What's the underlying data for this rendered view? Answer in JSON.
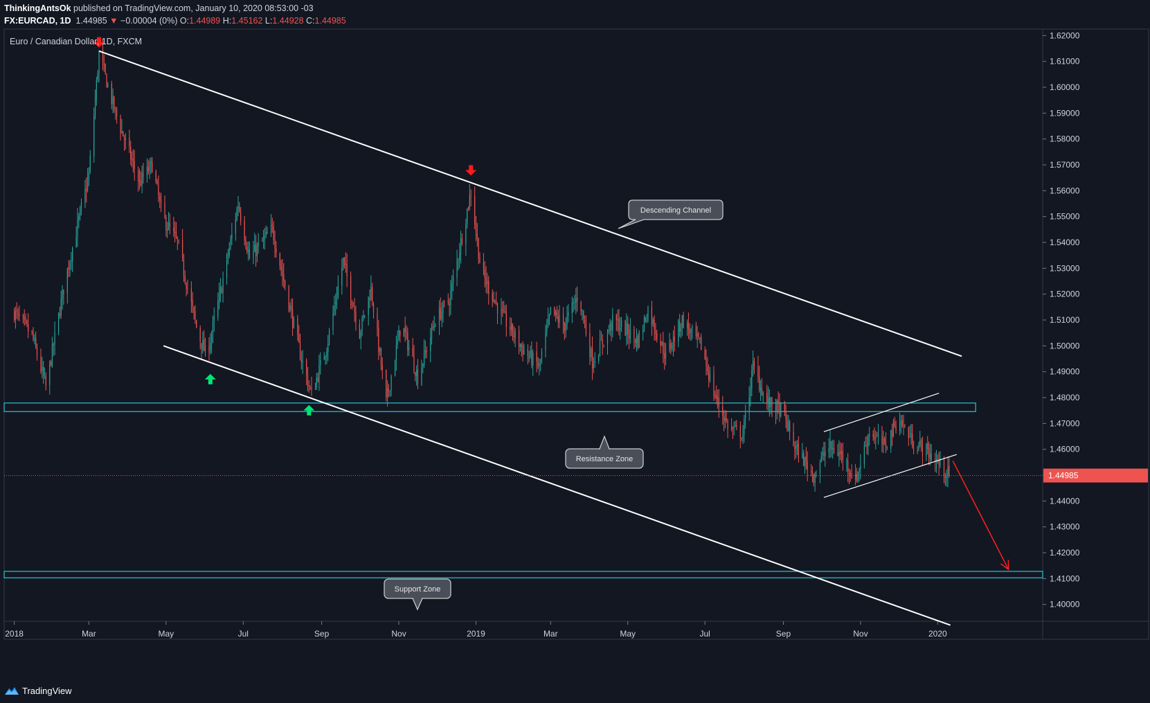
{
  "header": {
    "author": "ThinkingAntsOk",
    "published_text": "published on TradingView.com, January 10, 2020 08:53:00 -03",
    "symbol": "FX:EURCAD, 1D",
    "last": "1.44985",
    "change_arrow": "▼",
    "change": "−0.00004 (0%)",
    "open_label": "O:",
    "open": "1.44989",
    "high_label": "H:",
    "high": "1.45162",
    "low_label": "L:",
    "low": "1.44928",
    "close_label": "C:",
    "close": "1.44985"
  },
  "chart": {
    "legend_title": "Euro / Canadian Dollar, 1D, FXCM",
    "price_tag": "1.44985",
    "annotations": {
      "descending_channel": "Descending Channel",
      "resistance_zone": "Resistance Zone",
      "support_zone": "Support Zone"
    },
    "colors": {
      "background": "#131722",
      "up": "#26a69a",
      "down": "#ef5350",
      "zone": "#26c6da",
      "trend": "#ffffff",
      "signal_up": "#00e676",
      "signal_down": "#ff1a1a",
      "projection": "#ff2020",
      "label_bg": "#4a4e59"
    }
  },
  "footer": {
    "brand": "TradingView",
    "logo_icon": "tradingview-logo-icon"
  },
  "chart_data": {
    "type": "candlestick",
    "title": "Euro / Canadian Dollar, 1D, FXCM",
    "x_ticks": [
      "2018",
      "Mar",
      "May",
      "Jul",
      "Sep",
      "Nov",
      "2019",
      "Mar",
      "May",
      "Jul",
      "Sep",
      "Nov",
      "2020"
    ],
    "y_ticks": [
      "1.62000",
      "1.61000",
      "1.60000",
      "1.59000",
      "1.58000",
      "1.57000",
      "1.56000",
      "1.55000",
      "1.54000",
      "1.53000",
      "1.52000",
      "1.51000",
      "1.50000",
      "1.49000",
      "1.48000",
      "1.47000",
      "1.46000",
      "1.45000",
      "1.44000",
      "1.43000",
      "1.42000",
      "1.41000",
      "1.40000"
    ],
    "ylim": [
      1.3935,
      1.6225
    ],
    "xlim": [
      "2017-12-24",
      "2020-03-24"
    ],
    "last_price": 1.44985,
    "price_path": [
      [
        "2018-01-01",
        1.513
      ],
      [
        "2018-01-15",
        1.504
      ],
      [
        "2018-01-26",
        1.484
      ],
      [
        "2018-02-10",
        1.525
      ],
      [
        "2018-03-01",
        1.566
      ],
      [
        "2018-03-09",
        1.613
      ],
      [
        "2018-03-22",
        1.59
      ],
      [
        "2018-04-10",
        1.563
      ],
      [
        "2018-04-20",
        1.57
      ],
      [
        "2018-04-28",
        1.55
      ],
      [
        "2018-05-10",
        1.54
      ],
      [
        "2018-05-26",
        1.505
      ],
      [
        "2018-06-02",
        1.496
      ],
      [
        "2018-06-14",
        1.523
      ],
      [
        "2018-06-27",
        1.555
      ],
      [
        "2018-07-06",
        1.534
      ],
      [
        "2018-07-24",
        1.545
      ],
      [
        "2018-08-05",
        1.519
      ],
      [
        "2018-08-15",
        1.497
      ],
      [
        "2018-08-24",
        1.481
      ],
      [
        "2018-09-05",
        1.5
      ],
      [
        "2018-09-18",
        1.533
      ],
      [
        "2018-10-01",
        1.505
      ],
      [
        "2018-10-10",
        1.522
      ],
      [
        "2018-10-22",
        1.478
      ],
      [
        "2018-11-03",
        1.509
      ],
      [
        "2018-11-16",
        1.488
      ],
      [
        "2018-11-30",
        1.51
      ],
      [
        "2018-12-11",
        1.518
      ],
      [
        "2018-12-20",
        1.54
      ],
      [
        "2018-12-28",
        1.56
      ],
      [
        "2019-01-05",
        1.529
      ],
      [
        "2019-01-20",
        1.513
      ],
      [
        "2019-02-08",
        1.498
      ],
      [
        "2019-02-20",
        1.492
      ],
      [
        "2019-03-01",
        1.513
      ],
      [
        "2019-03-12",
        1.508
      ],
      [
        "2019-03-23",
        1.52
      ],
      [
        "2019-04-03",
        1.494
      ],
      [
        "2019-04-20",
        1.51
      ],
      [
        "2019-05-09",
        1.502
      ],
      [
        "2019-05-17",
        1.514
      ],
      [
        "2019-05-31",
        1.496
      ],
      [
        "2019-06-13",
        1.51
      ],
      [
        "2019-06-28",
        1.5
      ],
      [
        "2019-07-08",
        1.482
      ],
      [
        "2019-07-20",
        1.468
      ],
      [
        "2019-07-31",
        1.466
      ],
      [
        "2019-08-08",
        1.492
      ],
      [
        "2019-08-19",
        1.478
      ],
      [
        "2019-08-31",
        1.475
      ],
      [
        "2019-09-10",
        1.461
      ],
      [
        "2019-09-25",
        1.45
      ],
      [
        "2019-10-06",
        1.461
      ],
      [
        "2019-10-17",
        1.458
      ],
      [
        "2019-10-28",
        1.448
      ],
      [
        "2019-11-08",
        1.467
      ],
      [
        "2019-11-20",
        1.461
      ],
      [
        "2019-12-01",
        1.472
      ],
      [
        "2019-12-12",
        1.463
      ],
      [
        "2019-12-22",
        1.46
      ],
      [
        "2020-01-01",
        1.455
      ],
      [
        "2020-01-10",
        1.44985
      ]
    ],
    "drawings": {
      "descending_channel_upper": [
        [
          "2018-03-09",
          1.614
        ],
        [
          "2020-01-20",
          1.496
        ]
      ],
      "descending_channel_lower": [
        [
          "2018-04-29",
          1.5
        ],
        [
          "2020-01-11",
          1.392
        ]
      ],
      "resistance_zone": [
        1.4746,
        1.4779
      ],
      "support_zone": [
        1.4103,
        1.4128
      ],
      "rising_channel_upper": [
        [
          "2019-10-03",
          1.4668
        ],
        [
          "2020-01-02",
          1.4817
        ]
      ],
      "rising_channel_lower": [
        [
          "2019-10-03",
          1.4414
        ],
        [
          "2020-01-16",
          1.458
        ]
      ],
      "projection_arrow": [
        [
          "2020-01-13",
          1.4555
        ],
        [
          "2020-02-26",
          1.4135
        ]
      ],
      "signal_up_markers": [
        [
          "2018-06-05",
          1.487
        ],
        [
          "2018-08-22",
          1.475
        ]
      ],
      "signal_down_markers": [
        [
          "2018-03-09",
          1.6175
        ],
        [
          "2018-12-28",
          1.568
        ]
      ]
    },
    "grid": false,
    "legend": "top-left"
  }
}
